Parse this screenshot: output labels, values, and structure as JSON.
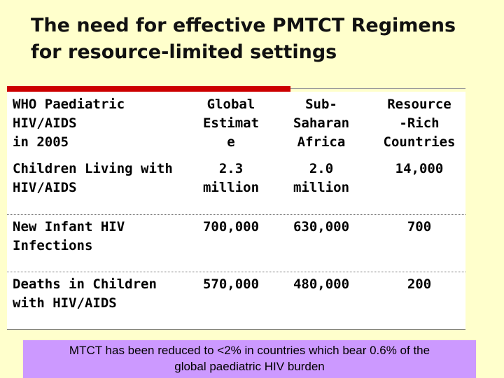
{
  "slide": {
    "title_line1": "The need for effective PMTCT Regimens",
    "title_line2": "for resource-limited settings"
  },
  "table": {
    "headers": [
      [
        "WHO Paediatric",
        "HIV/AIDS",
        "in 2005"
      ],
      [
        "Global",
        "Estimat",
        "e"
      ],
      [
        "Sub-",
        "Saharan",
        "Africa"
      ],
      [
        "Resource",
        "-Rich",
        "Countries"
      ]
    ],
    "rows": [
      {
        "label": [
          "Children Living with",
          "HIV/AIDS"
        ],
        "global": [
          "2.3",
          "million"
        ],
        "ssa": [
          "2.0",
          "million"
        ],
        "rich": "14,000"
      },
      {
        "label": [
          "New Infant HIV",
          "Infections"
        ],
        "global": "700,000",
        "ssa": "630,000",
        "rich": "700"
      },
      {
        "label": [
          "Deaths in Children",
          "with HIV/AIDS"
        ],
        "global": "570,000",
        "ssa": "480,000",
        "rich": "200"
      }
    ]
  },
  "footnote": {
    "line1": "MTCT has been reduced to <2% in countries which bear 0.6% of the",
    "line2": "global paediatric HIV burden"
  },
  "colors": {
    "background": "#FFFFCC",
    "accent_bar": "#CC0000",
    "footnote_bg": "#CC99FF"
  }
}
